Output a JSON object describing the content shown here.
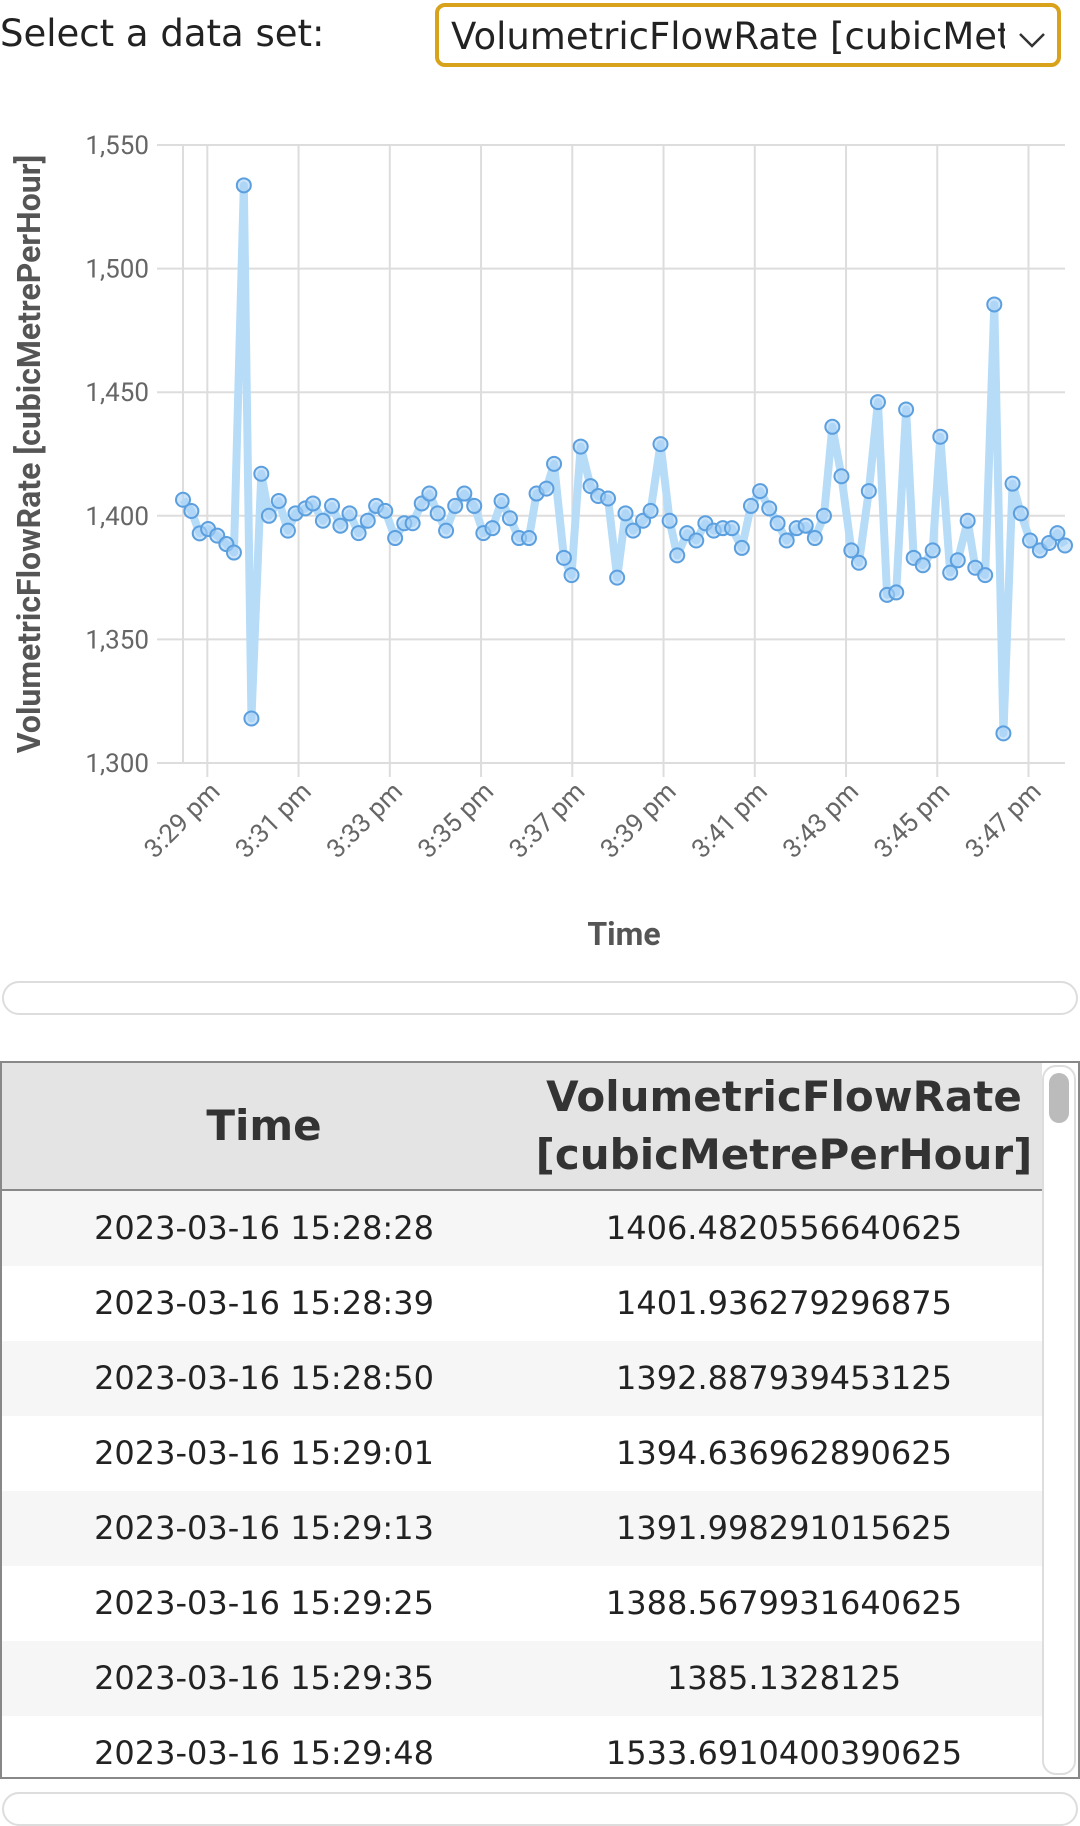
{
  "select": {
    "label": "Select a data set:",
    "value": "VolumetricFlowRate [cubicMetrePerHour]"
  },
  "chart_data": {
    "type": "line",
    "x_label": "Time",
    "y_label": "VolumetricFlowRate [cubicMetrePerHour]",
    "x": [
      "15:28:28",
      "15:28:39",
      "15:28:50",
      "15:29:01",
      "15:29:13",
      "15:29:25",
      "15:29:35",
      "15:29:48",
      "15:29:58",
      "15:30:11",
      "15:30:21",
      "15:30:34",
      "15:30:46",
      "15:30:56",
      "15:31:09",
      "15:31:19",
      "15:31:32",
      "15:31:44",
      "15:31:55",
      "15:32:07",
      "15:32:19",
      "15:32:31",
      "15:32:42",
      "15:32:54",
      "15:33:07",
      "15:33:19",
      "15:33:30",
      "15:33:42",
      "15:33:52",
      "15:34:03",
      "15:34:14",
      "15:34:26",
      "15:34:38",
      "15:34:51",
      "15:35:03",
      "15:35:15",
      "15:35:27",
      "15:35:38",
      "15:35:50",
      "15:36:03",
      "15:36:13",
      "15:36:26",
      "15:36:36",
      "15:36:49",
      "15:36:59",
      "15:37:11",
      "15:37:24",
      "15:37:34",
      "15:37:47",
      "15:37:59",
      "15:38:10",
      "15:38:20",
      "15:38:33",
      "15:38:43",
      "15:38:56",
      "15:39:08",
      "15:39:18",
      "15:39:31",
      "15:39:43",
      "15:39:55",
      "15:40:06",
      "15:40:18",
      "15:40:30",
      "15:40:43",
      "15:40:55",
      "15:41:07",
      "15:41:19",
      "15:41:30",
      "15:41:42",
      "15:41:55",
      "15:42:07",
      "15:42:19",
      "15:42:31",
      "15:42:42",
      "15:42:54",
      "15:43:07",
      "15:43:17",
      "15:43:30",
      "15:43:42",
      "15:43:54",
      "15:44:06",
      "15:44:19",
      "15:44:29",
      "15:44:41",
      "15:44:54",
      "15:45:04",
      "15:45:17",
      "15:45:27",
      "15:45:40",
      "15:45:50",
      "15:46:03",
      "15:46:15",
      "15:46:27",
      "15:46:39",
      "15:46:50",
      "15:47:02",
      "15:47:15",
      "15:47:27",
      "15:47:38",
      "15:47:48"
    ],
    "series": [
      {
        "name": "VolumetricFlowRate [cubicMetrePerHour]",
        "color": "#5b9fdf",
        "values": [
          1406.4820556640625,
          1401.936279296875,
          1392.887939453125,
          1394.636962890625,
          1391.998291015625,
          1388.5679931640625,
          1385.1328125,
          1533.6910400390625,
          1318,
          1417,
          1400,
          1406,
          1394,
          1401,
          1403,
          1405,
          1398,
          1404,
          1396,
          1401,
          1393,
          1398,
          1404,
          1402,
          1391,
          1397,
          1397,
          1405,
          1409,
          1401,
          1394,
          1404,
          1409,
          1404,
          1393,
          1395,
          1406,
          1399,
          1391,
          1391,
          1409,
          1411,
          1421,
          1383,
          1376,
          1428,
          1412,
          1408,
          1407,
          1375,
          1401,
          1394,
          1398,
          1402,
          1429,
          1398,
          1384,
          1393,
          1390,
          1397,
          1394,
          1395,
          1395,
          1387,
          1404,
          1410,
          1403,
          1397,
          1390,
          1395,
          1396,
          1391,
          1400,
          1436,
          1416,
          1386,
          1381,
          1410,
          1446,
          1368,
          1369,
          1443,
          1383,
          1380,
          1386,
          1432,
          1377,
          1382,
          1398,
          1379,
          1376,
          1485.5,
          1312,
          1413,
          1401,
          1390,
          1386,
          1389,
          1393,
          1388
        ]
      }
    ],
    "xlim": [
      "15:28:28",
      "15:47:48"
    ],
    "xticks": [
      {
        "value": "15:29:00",
        "label": "3:29 pm"
      },
      {
        "value": "15:31:00",
        "label": "3:31 pm"
      },
      {
        "value": "15:33:00",
        "label": "3:33 pm"
      },
      {
        "value": "15:35:00",
        "label": "3:35 pm"
      },
      {
        "value": "15:37:00",
        "label": "3:37 pm"
      },
      {
        "value": "15:39:00",
        "label": "3:39 pm"
      },
      {
        "value": "15:41:00",
        "label": "3:41 pm"
      },
      {
        "value": "15:43:00",
        "label": "3:43 pm"
      },
      {
        "value": "15:45:00",
        "label": "3:45 pm"
      },
      {
        "value": "15:47:00",
        "label": "3:47 pm"
      }
    ],
    "ylim": [
      1300,
      1550
    ],
    "yticks": [
      {
        "value": 1300,
        "label": "1,300"
      },
      {
        "value": 1350,
        "label": "1,350"
      },
      {
        "value": 1400,
        "label": "1,400"
      },
      {
        "value": 1450,
        "label": "1,450"
      },
      {
        "value": 1500,
        "label": "1,500"
      },
      {
        "value": 1550,
        "label": "1,550"
      }
    ],
    "grid": true
  },
  "table": {
    "columns": [
      "Time",
      "VolumetricFlowRate [cubicMetrePerHour]"
    ],
    "rows": [
      [
        "2023-03-16 15:28:28",
        "1406.4820556640625"
      ],
      [
        "2023-03-16 15:28:39",
        "1401.936279296875"
      ],
      [
        "2023-03-16 15:28:50",
        "1392.887939453125"
      ],
      [
        "2023-03-16 15:29:01",
        "1394.636962890625"
      ],
      [
        "2023-03-16 15:29:13",
        "1391.998291015625"
      ],
      [
        "2023-03-16 15:29:25",
        "1388.5679931640625"
      ],
      [
        "2023-03-16 15:29:35",
        "1385.1328125"
      ],
      [
        "2023-03-16 15:29:48",
        "1533.6910400390625"
      ]
    ]
  }
}
